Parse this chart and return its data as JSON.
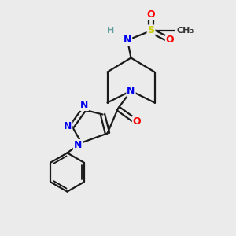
{
  "background_color": "#ebebeb",
  "fig_width": 3.0,
  "fig_height": 3.0,
  "dpi": 100,
  "atom_colors": {
    "C": "#000000",
    "N": "#0000ee",
    "O": "#ff0000",
    "S": "#cccc00",
    "H": "#5f9ea0"
  },
  "bond_color": "#1a1a1a",
  "bond_width": 1.6,
  "font_size_atoms": 9,
  "font_size_small": 8
}
